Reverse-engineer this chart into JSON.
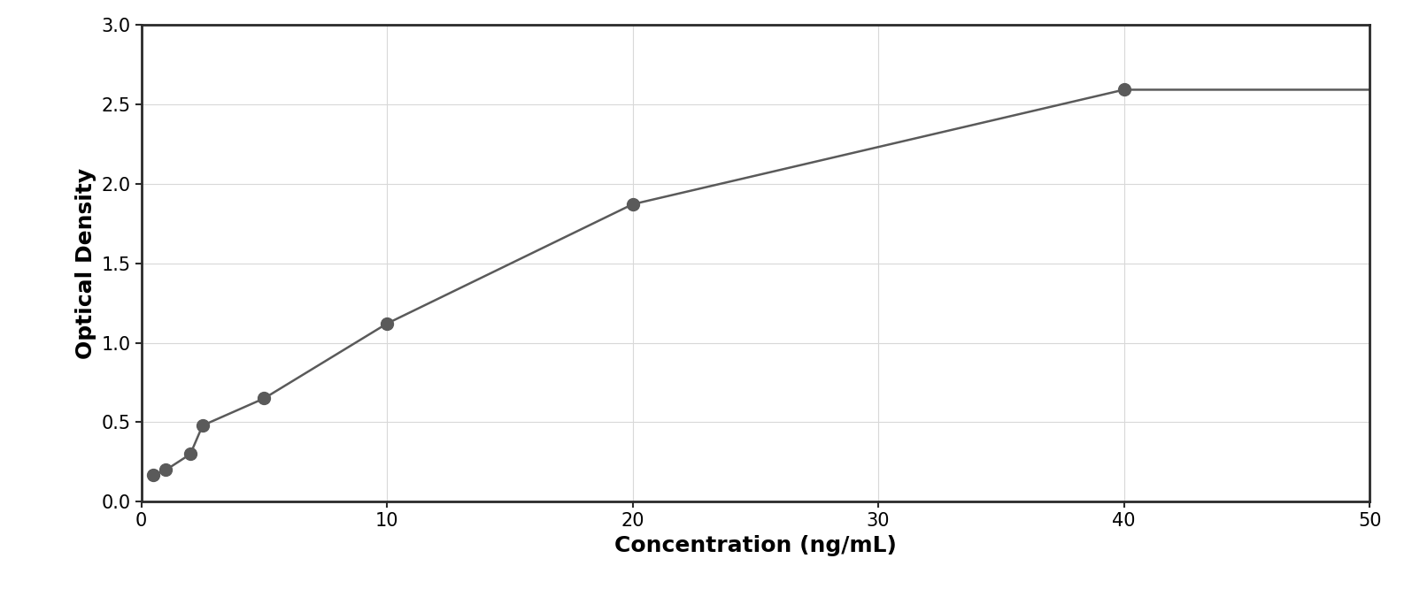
{
  "x_data": [
    0.5,
    1.0,
    2.0,
    2.5,
    5.0,
    10.0,
    20.0,
    40.0
  ],
  "y_data": [
    0.17,
    0.2,
    0.3,
    0.48,
    0.65,
    1.12,
    1.87,
    2.59
  ],
  "point_color": "#5a5a5a",
  "line_color": "#5a5a5a",
  "marker_size": 10,
  "line_width": 1.8,
  "xlabel": "Concentration (ng/mL)",
  "ylabel": "Optical Density",
  "xlim": [
    0,
    50
  ],
  "ylim": [
    0,
    3
  ],
  "xticks": [
    0,
    10,
    20,
    30,
    40,
    50
  ],
  "yticks": [
    0,
    0.5,
    1.0,
    1.5,
    2.0,
    2.5,
    3.0
  ],
  "xlabel_fontsize": 18,
  "ylabel_fontsize": 18,
  "tick_fontsize": 15,
  "grid_color": "#d8d8d8",
  "background_color": "#ffffff",
  "figure_bg": "#ffffff",
  "border_color": "#2a2a2a",
  "curve_x_start": 0.3,
  "curve_x_end": 50,
  "outer_border_color": "#2a2a2a",
  "outer_border_lw": 2.0
}
